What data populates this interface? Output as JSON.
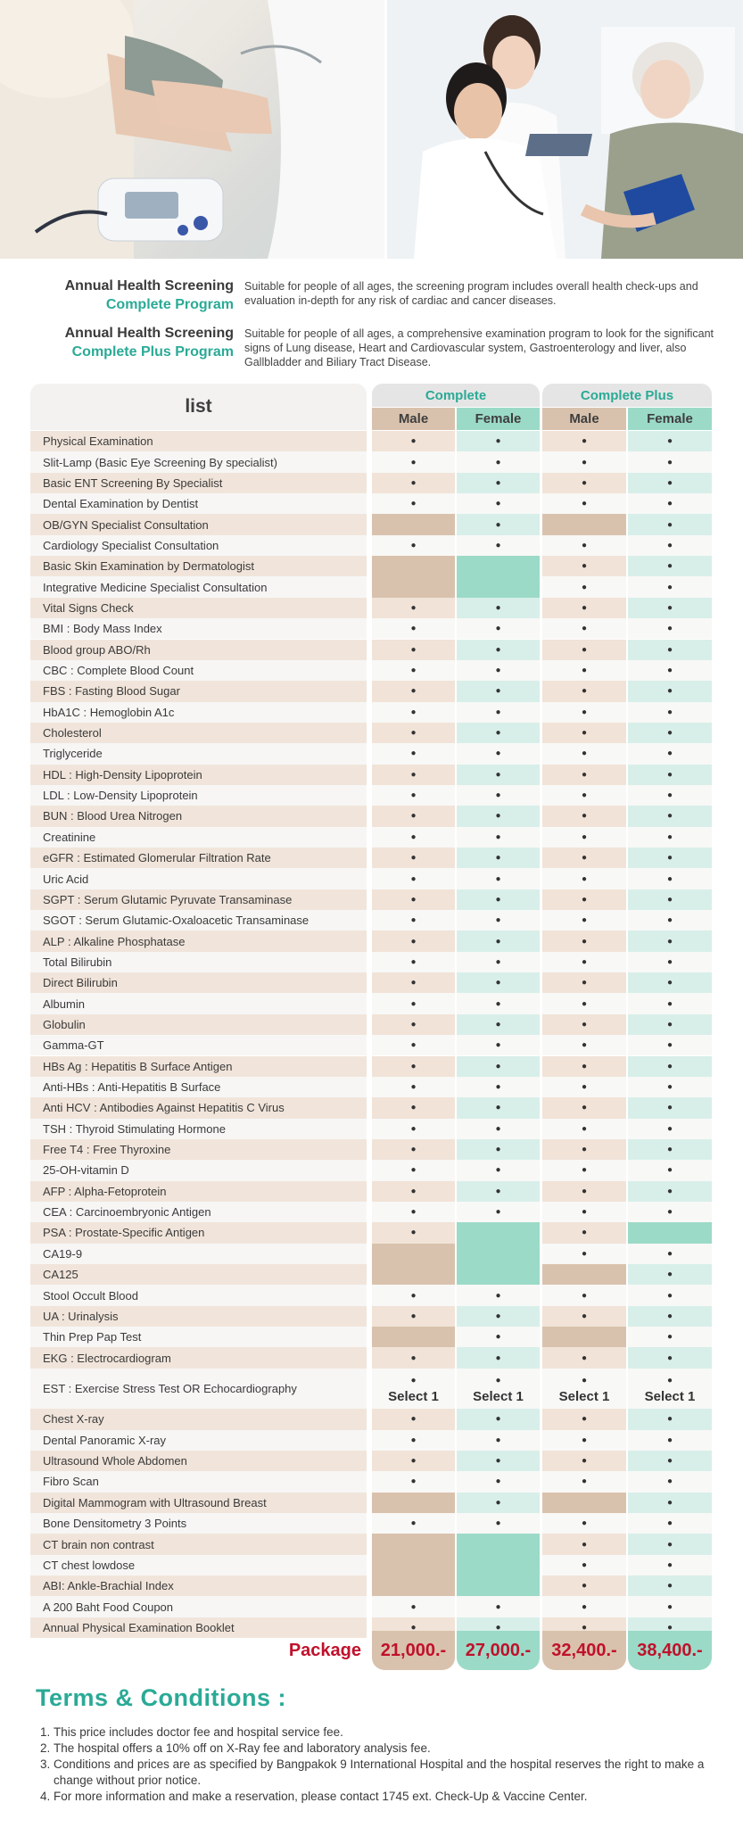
{
  "intro": [
    {
      "title_line1": "Annual Health Screening",
      "title_line2": "Complete Program",
      "description": "Suitable for people of all ages, the screening program includes overall health check-ups and evaluation in-depth for any risk of cardiac and cancer diseases."
    },
    {
      "title_line1": "Annual Health Screening",
      "title_line2": "Complete Plus Program",
      "description": "Suitable for people of all ages, a comprehensive examination program to look for the significant signs of Lung disease, Heart and Cardiovascular system, Gastroenterology and liver, also Gallbladder and Biliary Tract Disease."
    }
  ],
  "table": {
    "list_header": "list",
    "groups": [
      "Complete",
      "Complete Plus"
    ],
    "subheaders": [
      "Male",
      "Female",
      "Male",
      "Female"
    ],
    "dot": "●",
    "select_label": "Select 1",
    "colors": {
      "beige": "#f1e3d8",
      "beige_dark": "#d9c2ad",
      "mint": "#d8efe9",
      "mint_dark": "#9bdac7",
      "label_odd": "#f1e5db",
      "label_even": "#f7f6f5"
    },
    "rows": [
      {
        "label": "Physical Examination",
        "v": [
          "●",
          "●",
          "●",
          "●"
        ]
      },
      {
        "label": "Slit-Lamp (Basic Eye Screening By specialist)",
        "v": [
          "●",
          "●",
          "●",
          "●"
        ]
      },
      {
        "label": "Basic ENT Screening By Specialist",
        "v": [
          "●",
          "●",
          "●",
          "●"
        ]
      },
      {
        "label": "Dental Examination by Dentist",
        "v": [
          "●",
          "●",
          "●",
          "●"
        ]
      },
      {
        "label": "OB/GYN Specialist Consultation",
        "v": [
          "-",
          "●",
          "-",
          "●"
        ]
      },
      {
        "label": "Cardiology Specialist Consultation",
        "v": [
          "●",
          "●",
          "●",
          "●"
        ]
      },
      {
        "label": "Basic Skin Examination by Dermatologist",
        "v": [
          "-",
          "-",
          "●",
          "●"
        ]
      },
      {
        "label": "Integrative Medicine Specialist Consultation",
        "v": [
          "-",
          "-",
          "●",
          "●"
        ]
      },
      {
        "label": "Vital Signs Check",
        "v": [
          "●",
          "●",
          "●",
          "●"
        ]
      },
      {
        "label": "BMI : Body Mass Index",
        "v": [
          "●",
          "●",
          "●",
          "●"
        ]
      },
      {
        "label": "Blood group ABO/Rh",
        "v": [
          "●",
          "●",
          "●",
          "●"
        ]
      },
      {
        "label": "CBC : Complete Blood Count",
        "v": [
          "●",
          "●",
          "●",
          "●"
        ]
      },
      {
        "label": "FBS : Fasting Blood Sugar",
        "v": [
          "●",
          "●",
          "●",
          "●"
        ]
      },
      {
        "label": "HbA1C : Hemoglobin A1c",
        "v": [
          "●",
          "●",
          "●",
          "●"
        ]
      },
      {
        "label": "Cholesterol",
        "v": [
          "●",
          "●",
          "●",
          "●"
        ]
      },
      {
        "label": "Triglyceride",
        "v": [
          "●",
          "●",
          "●",
          "●"
        ]
      },
      {
        "label": "HDL : High-Density Lipoprotein",
        "v": [
          "●",
          "●",
          "●",
          "●"
        ]
      },
      {
        "label": "LDL : Low-Density Lipoprotein",
        "v": [
          "●",
          "●",
          "●",
          "●"
        ]
      },
      {
        "label": "BUN : Blood Urea Nitrogen",
        "v": [
          "●",
          "●",
          "●",
          "●"
        ]
      },
      {
        "label": "Creatinine",
        "v": [
          "●",
          "●",
          "●",
          "●"
        ]
      },
      {
        "label": "eGFR : Estimated Glomerular Filtration Rate",
        "v": [
          "●",
          "●",
          "●",
          "●"
        ]
      },
      {
        "label": "Uric Acid",
        "v": [
          "●",
          "●",
          "●",
          "●"
        ]
      },
      {
        "label": "SGPT : Serum Glutamic Pyruvate Transaminase",
        "v": [
          "●",
          "●",
          "●",
          "●"
        ]
      },
      {
        "label": "SGOT : Serum Glutamic-Oxaloacetic Transaminase",
        "v": [
          "●",
          "●",
          "●",
          "●"
        ]
      },
      {
        "label": "ALP : Alkaline Phosphatase",
        "v": [
          "●",
          "●",
          "●",
          "●"
        ]
      },
      {
        "label": "Total Bilirubin",
        "v": [
          "●",
          "●",
          "●",
          "●"
        ]
      },
      {
        "label": "Direct Bilirubin",
        "v": [
          "●",
          "●",
          "●",
          "●"
        ]
      },
      {
        "label": "Albumin",
        "v": [
          "●",
          "●",
          "●",
          "●"
        ]
      },
      {
        "label": "Globulin",
        "v": [
          "●",
          "●",
          "●",
          "●"
        ]
      },
      {
        "label": "Gamma-GT",
        "v": [
          "●",
          "●",
          "●",
          "●"
        ]
      },
      {
        "label": "HBs Ag : Hepatitis B Surface Antigen",
        "v": [
          "●",
          "●",
          "●",
          "●"
        ]
      },
      {
        "label": "Anti-HBs :  Anti-Hepatitis B Surface",
        "v": [
          "●",
          "●",
          "●",
          "●"
        ]
      },
      {
        "label": "Anti HCV : Antibodies Against Hepatitis C Virus",
        "v": [
          "●",
          "●",
          "●",
          "●"
        ]
      },
      {
        "label": "TSH : Thyroid Stimulating Hormone",
        "v": [
          "●",
          "●",
          "●",
          "●"
        ]
      },
      {
        "label": "Free T4 : Free Thyroxine",
        "v": [
          "●",
          "●",
          "●",
          "●"
        ]
      },
      {
        "label": "25-OH-vitamin D",
        "v": [
          "●",
          "●",
          "●",
          "●"
        ]
      },
      {
        "label": "AFP : Alpha-Fetoprotein",
        "v": [
          "●",
          "●",
          "●",
          "●"
        ]
      },
      {
        "label": "CEA : Carcinoembryonic Antigen",
        "v": [
          "●",
          "●",
          "●",
          "●"
        ]
      },
      {
        "label": "PSA : Prostate-Specific Antigen",
        "v": [
          "●",
          "-",
          "●",
          "-"
        ]
      },
      {
        "label": "CA19-9",
        "v": [
          "-",
          "-",
          "●",
          "●"
        ]
      },
      {
        "label": "CA125",
        "v": [
          "-",
          "-",
          "-",
          "●"
        ]
      },
      {
        "label": "Stool Occult Blood",
        "v": [
          "●",
          "●",
          "●",
          "●"
        ]
      },
      {
        "label": "UA : Urinalysis",
        "v": [
          "●",
          "●",
          "●",
          "●"
        ]
      },
      {
        "label": "Thin Prep Pap Test",
        "v": [
          "-",
          "●",
          "-",
          "●"
        ]
      },
      {
        "label": "EKG : Electrocardiogram",
        "v": [
          "●",
          "●",
          "●",
          "●"
        ]
      },
      {
        "label": "EST : Exercise Stress Test OR Echocardiography",
        "v": [
          "S",
          "S",
          "S",
          "S"
        ],
        "tall": true
      },
      {
        "label": "Chest X-ray",
        "v": [
          "●",
          "●",
          "●",
          "●"
        ]
      },
      {
        "label": "Dental Panoramic X-ray",
        "v": [
          "●",
          "●",
          "●",
          "●"
        ]
      },
      {
        "label": "Ultrasound Whole Abdomen",
        "v": [
          "●",
          "●",
          "●",
          "●"
        ]
      },
      {
        "label": "Fibro Scan",
        "v": [
          "●",
          "●",
          "●",
          "●"
        ]
      },
      {
        "label": "Digital Mammogram with Ultrasound Breast",
        "v": [
          "-",
          "●",
          "-",
          "●"
        ]
      },
      {
        "label": "Bone Densitometry 3 Points",
        "v": [
          "●",
          "●",
          "●",
          "●"
        ]
      },
      {
        "label": "CT brain non contrast",
        "v": [
          "-",
          "-",
          "●",
          "●"
        ]
      },
      {
        "label": "CT chest  lowdose",
        "v": [
          "-",
          "-",
          "●",
          "●"
        ]
      },
      {
        "label": "ABI: Ankle-Brachial Index",
        "v": [
          "-",
          "-",
          "●",
          "●"
        ]
      },
      {
        "label": "A 200 Baht Food Coupon",
        "v": [
          "●",
          "●",
          "●",
          "●"
        ]
      },
      {
        "label": "Annual Physical Examination Booklet",
        "v": [
          "●",
          "●",
          "●",
          "●"
        ]
      }
    ],
    "package_label": "Package",
    "prices": [
      "21,000.-",
      "27,000.-",
      "32,400.-",
      "38,400.-"
    ]
  },
  "terms": {
    "heading": "Terms & Conditions :",
    "items": [
      "This price includes doctor fee and hospital service fee.",
      "The hospital offers a 10% off on X-Ray fee and laboratory analysis fee.",
      "Conditions and prices are as specified by Bangpakok 9 International Hospital and the hospital reserves the right to make a change without prior notice.",
      "For more information and make a reservation, please contact 1745 ext. Check-Up & Vaccine Center."
    ]
  }
}
